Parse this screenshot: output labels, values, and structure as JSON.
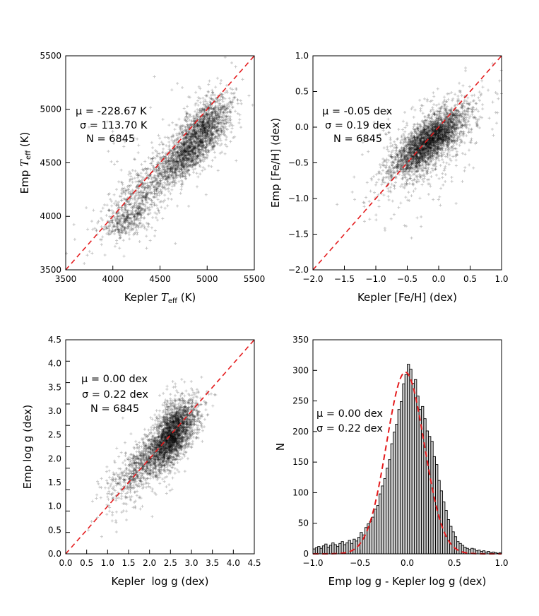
{
  "chart_data": [
    {
      "type": "scatter",
      "id": "teff",
      "xlabel_parts": [
        "Kepler ",
        "T",
        "eff",
        " (K)"
      ],
      "ylabel_parts": [
        "Emp ",
        "T",
        "eff",
        " (K)"
      ],
      "xlim": [
        3500,
        5500
      ],
      "ylim": [
        3500,
        5500
      ],
      "xticks": [
        "3500",
        "4000",
        "4500",
        "5000",
        "5500"
      ],
      "yticks": [
        "3500",
        "4000",
        "4500",
        "5000",
        "5500"
      ],
      "one_to_one_line": true,
      "stats": [
        "μ = -228.67 K",
        "σ = 113.70 K",
        "N = 6845"
      ],
      "n_points": 6845,
      "clusters": [
        {
          "x": 4970,
          "y": 4830,
          "sx": 140,
          "sy": 150,
          "rho": 0.5,
          "w": 0.4
        },
        {
          "x": 4750,
          "y": 4550,
          "sx": 130,
          "sy": 120,
          "rho": 0.6,
          "w": 0.25
        },
        {
          "x": 4350,
          "y": 4250,
          "sx": 220,
          "sy": 220,
          "rho": 0.8,
          "w": 0.2
        },
        {
          "x": 4150,
          "y": 3950,
          "sx": 120,
          "sy": 70,
          "rho": 0.3,
          "w": 0.08
        },
        {
          "x": 4500,
          "y": 4400,
          "sx": 450,
          "sy": 400,
          "rho": 0.7,
          "w": 0.07
        }
      ]
    },
    {
      "type": "scatter",
      "id": "feh",
      "xlabel": "Kepler [Fe/H] (dex)",
      "ylabel": "Emp [Fe/H] (dex)",
      "xlim": [
        -2.0,
        1.0
      ],
      "ylim": [
        -2.0,
        1.0
      ],
      "xticks": [
        "−2.0",
        "−1.5",
        "−1.0",
        "−0.5",
        "0.0",
        "0.5",
        "1.0"
      ],
      "yticks": [
        "−2.0",
        "−1.5",
        "−1.0",
        "−0.5",
        "0.0",
        "0.5",
        "1.0"
      ],
      "one_to_one_line": true,
      "stats": [
        "μ = -0.05 dex",
        "σ = 0.19 dex",
        "N = 6845"
      ],
      "n_points": 6845,
      "clusters": [
        {
          "x": -0.15,
          "y": -0.2,
          "sx": 0.28,
          "sy": 0.22,
          "rho": 0.75,
          "w": 0.8
        },
        {
          "x": -0.2,
          "y": -0.3,
          "sx": 0.45,
          "sy": 0.4,
          "rho": 0.6,
          "w": 0.2
        }
      ]
    },
    {
      "type": "scatter",
      "id": "logg",
      "xlabel": "Kepler  log g (dex)",
      "ylabel": "Emp log g (dex)",
      "xlim": [
        0.0,
        4.5
      ],
      "ylim": [
        0.0,
        4.5
      ],
      "xticks": [
        "0.0",
        "0.5",
        "1.0",
        "1.5",
        "2.0",
        "2.5",
        "3.0",
        "3.5",
        "4.0",
        "4.5"
      ],
      "yticks": [
        "0.0",
        "0.5",
        "1.0",
        "1.5",
        "2.0",
        "2.5",
        "3.0",
        "3.5",
        "4.0",
        "4.5"
      ],
      "one_to_one_line": true,
      "stats": [
        "μ = 0.00 dex",
        "σ = 0.22 dex",
        "N = 6845"
      ],
      "n_points": 6845,
      "clusters": [
        {
          "x": 2.5,
          "y": 2.5,
          "sx": 0.22,
          "sy": 0.35,
          "rho": 0.4,
          "w": 0.45
        },
        {
          "x": 2.8,
          "y": 2.7,
          "sx": 0.25,
          "sy": 0.35,
          "rho": 0.5,
          "w": 0.2
        },
        {
          "x": 2.0,
          "y": 2.0,
          "sx": 0.45,
          "sy": 0.4,
          "rho": 0.8,
          "w": 0.3
        },
        {
          "x": 1.6,
          "y": 1.5,
          "sx": 0.5,
          "sy": 0.5,
          "rho": 0.6,
          "w": 0.05
        }
      ]
    },
    {
      "type": "bar",
      "id": "hist",
      "xlabel": "Emp log g - Kepler log g (dex)",
      "ylabel": "N",
      "xlim": [
        -1.0,
        1.0
      ],
      "ylim": [
        0,
        350
      ],
      "xticks": [
        "−1.0",
        "−0.5",
        "0.0",
        "0.5",
        "1.0"
      ],
      "yticks": [
        "0",
        "50",
        "100",
        "150",
        "200",
        "250",
        "300",
        "350"
      ],
      "stats": [
        "μ = 0.00 dex",
        "σ = 0.22 dex"
      ],
      "bin_start": -1.0,
      "bin_width": 0.025,
      "values": [
        8,
        10,
        12,
        9,
        13,
        16,
        11,
        14,
        18,
        15,
        12,
        17,
        20,
        15,
        18,
        22,
        17,
        24,
        21,
        27,
        35,
        31,
        43,
        49,
        53,
        60,
        73,
        79,
        98,
        111,
        123,
        140,
        154,
        180,
        199,
        212,
        236,
        249,
        278,
        293,
        310,
        302,
        279,
        285,
        258,
        236,
        241,
        221,
        201,
        192,
        184,
        159,
        146,
        120,
        103,
        85,
        71,
        56,
        45,
        36,
        28,
        20,
        17,
        14,
        11,
        9,
        7,
        9,
        8,
        5,
        6,
        4,
        5,
        3,
        4,
        2,
        3,
        2,
        1,
        2
      ],
      "gaussian_fit": {
        "mu": -0.02,
        "sigma": 0.2,
        "amplitude": 297
      }
    }
  ]
}
